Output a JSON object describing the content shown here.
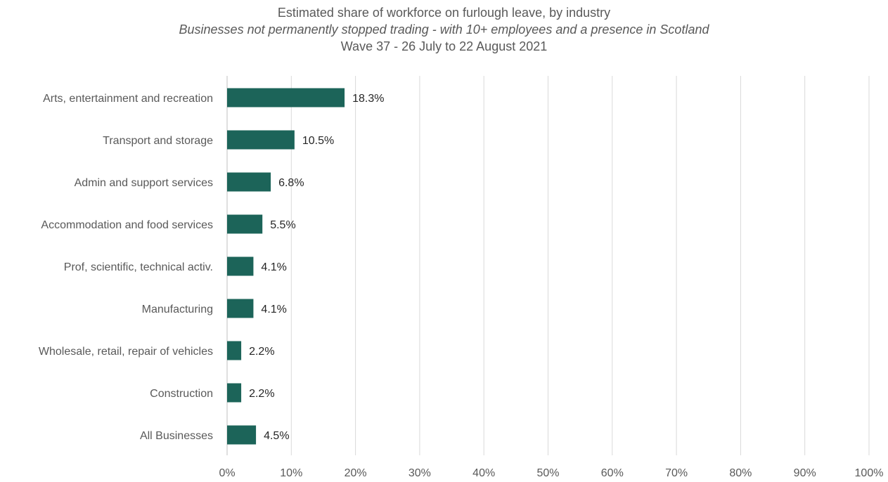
{
  "chart_data": {
    "type": "bar",
    "orientation": "horizontal",
    "title": "Estimated share of workforce on furlough leave, by industry",
    "subtitle": "Businesses not permanently stopped trading -  with 10+ employees and a presence in Scotland",
    "subtitle2": "Wave 37 - 26 July to 22 August 2021",
    "categories": [
      "Arts, entertainment and recreation",
      "Transport and storage",
      "Admin and support services",
      "Accommodation and food services",
      "Prof, scientific, technical activ.",
      "Manufacturing",
      "Wholesale, retail, repair of vehicles",
      "Construction",
      "All Businesses"
    ],
    "values": [
      18.3,
      10.5,
      6.8,
      5.5,
      4.1,
      4.1,
      2.2,
      2.2,
      4.5
    ],
    "data_labels": [
      "18.3%",
      "10.5%",
      "6.8%",
      "5.5%",
      "4.1%",
      "4.1%",
      "2.2%",
      "2.2%",
      "4.5%"
    ],
    "xlim": [
      0,
      100
    ],
    "xticks": [
      "0%",
      "10%",
      "20%",
      "30%",
      "40%",
      "50%",
      "60%",
      "70%",
      "80%",
      "90%",
      "100%"
    ],
    "grid": true,
    "bar_color": "#1c6459"
  }
}
